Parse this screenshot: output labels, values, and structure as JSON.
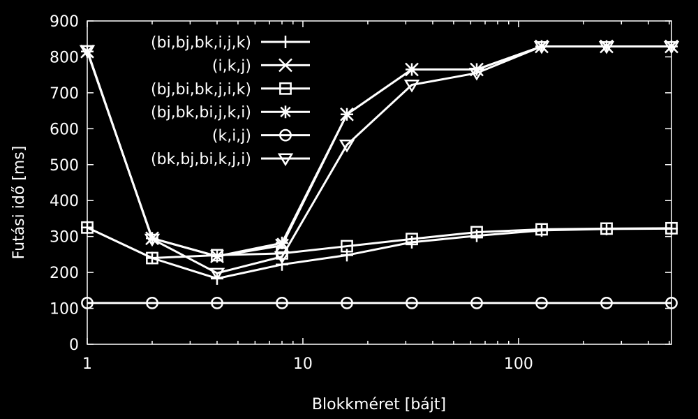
{
  "chart_data": {
    "type": "line",
    "title": "",
    "xlabel": "Blokkméret [bájt]",
    "ylabel": "Futási idő [ms]",
    "xscale": "log",
    "xlim": [
      1,
      512
    ],
    "ylim": [
      0,
      900
    ],
    "xticks": [
      1,
      10,
      100
    ],
    "yticks": [
      0,
      100,
      200,
      300,
      400,
      500,
      600,
      700,
      800,
      900
    ],
    "grid": false,
    "legend_position": "top-left",
    "x": [
      1,
      2,
      4,
      8,
      16,
      32,
      64,
      128,
      256,
      512
    ],
    "series": [
      {
        "name": "(bi,bj,bk,i,j,k)",
        "marker": "plus",
        "values": [
          325,
          240,
          183,
          222,
          248,
          284,
          302,
          317,
          321,
          322
        ]
      },
      {
        "name": "(i,k,j)",
        "marker": "cross",
        "values": [
          815,
          295,
          245,
          275,
          640,
          765,
          765,
          829,
          829,
          829
        ]
      },
      {
        "name": "(bj,bi,bk,j,i,k)",
        "marker": "square",
        "values": [
          325,
          240,
          248,
          253,
          273,
          293,
          312,
          320,
          322,
          323
        ]
      },
      {
        "name": "(bj,bk,bi,j,k,i)",
        "marker": "asterisk",
        "values": [
          815,
          295,
          245,
          282,
          640,
          765,
          765,
          829,
          829,
          829
        ]
      },
      {
        "name": "(k,i,j)",
        "marker": "circle",
        "values": [
          115,
          115,
          115,
          115,
          115,
          115,
          115,
          115,
          115,
          115
        ]
      },
      {
        "name": "(bk,bj,bi,k,j,i)",
        "marker": "triangle-down",
        "values": [
          818,
          293,
          198,
          244,
          555,
          722,
          755,
          829,
          829,
          829
        ]
      }
    ]
  }
}
